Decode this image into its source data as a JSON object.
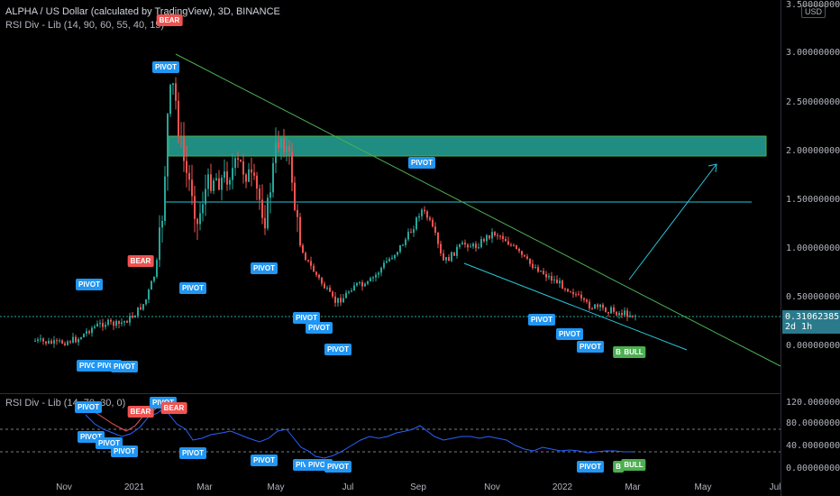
{
  "legend": {
    "title": "ALPHA / US Dollar (calculated by TradingView), 3D, BINANCE",
    "indicator": "RSI Div - Lib (14, 90, 60, 55, 40, 15)"
  },
  "rsi_pane": {
    "title": "RSI Div - Lib (14, 70, 30, 0)"
  },
  "price_axis": {
    "currency": "USD",
    "labels": [
      "3.50000000",
      "3.00000000",
      "2.50000000",
      "2.00000000",
      "1.50000000",
      "1.00000000",
      "0.50000000",
      "0.00000000"
    ],
    "current_price": "0.31062385",
    "countdown": "2d 1h"
  },
  "rsi_axis": {
    "labels": [
      "120.00000000",
      "80.00000000",
      "40.00000000",
      "0.00000000"
    ]
  },
  "time_axis": {
    "labels": [
      "Nov",
      "2021",
      "Mar",
      "May",
      "Jul",
      "Sep",
      "Nov",
      "2022",
      "Mar",
      "May",
      "Jul"
    ]
  },
  "markers": {
    "pivot": "PIVOT",
    "bear": "BEAR",
    "bull": "BULL",
    "bull_short": "B"
  },
  "colors": {
    "up": "#26a69a",
    "down": "#ef5350",
    "resistance_zone": "#26a69a",
    "trendline": "#4caf50",
    "channel": "#00bcd4",
    "rsi_line": "#2962ff",
    "rsi_bear_line": "#ef5350"
  }
}
